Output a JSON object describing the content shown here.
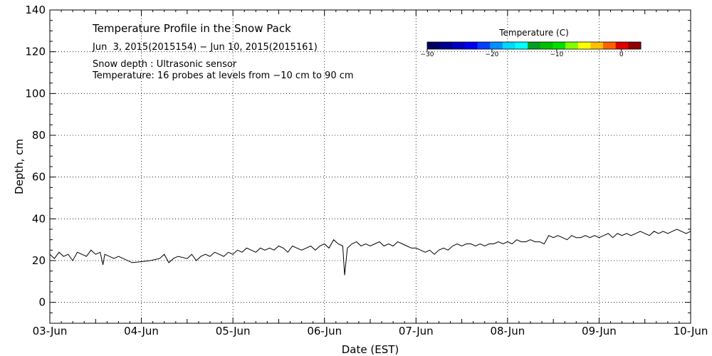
{
  "chart_data": {
    "type": "line",
    "title": "Temperature Profile in the Snow Pack",
    "subtitle": "Jun  3, 2015(2015154) − Jun 10, 2015(2015161)",
    "annotations": [
      "Snow depth : Ultrasonic sensor",
      "Temperature: 16 probes at levels from −10 cm to 90 cm"
    ],
    "xlabel": "Date (EST)",
    "ylabel": "Depth, cm",
    "xlim": [
      0,
      7
    ],
    "ylim": [
      -10,
      140
    ],
    "x_tick_labels": [
      "03-Jun",
      "04-Jun",
      "05-Jun",
      "06-Jun",
      "07-Jun",
      "08-Jun",
      "09-Jun",
      "10-Jun"
    ],
    "y_ticks": [
      0,
      20,
      40,
      60,
      80,
      100,
      120,
      140
    ],
    "grid": true,
    "colorbar": {
      "title": "Temperature (C)",
      "tick_labels": [
        "−30",
        "−20",
        "−10",
        "0"
      ],
      "tick_values": [
        -30,
        -20,
        -10,
        0
      ],
      "range": [
        -30,
        3
      ],
      "colors": [
        "#000060",
        "#000090",
        "#0000c0",
        "#0000f0",
        "#0040ff",
        "#0090ff",
        "#00d8ff",
        "#00ffff",
        "#00a020",
        "#00c000",
        "#00e000",
        "#80ff00",
        "#ffff00",
        "#ffc000",
        "#ff6000",
        "#e00000",
        "#900000"
      ]
    },
    "series": [
      {
        "name": "Snow depth",
        "points": [
          [
            0.0,
            23
          ],
          [
            0.05,
            21
          ],
          [
            0.1,
            24
          ],
          [
            0.15,
            22
          ],
          [
            0.2,
            23
          ],
          [
            0.25,
            20
          ],
          [
            0.3,
            24
          ],
          [
            0.35,
            23
          ],
          [
            0.4,
            22
          ],
          [
            0.45,
            25
          ],
          [
            0.5,
            23
          ],
          [
            0.55,
            24
          ],
          [
            0.58,
            18
          ],
          [
            0.6,
            23
          ],
          [
            0.65,
            22
          ],
          [
            0.7,
            21
          ],
          [
            0.75,
            22
          ],
          [
            0.8,
            21
          ],
          [
            0.9,
            19
          ],
          [
            1.0,
            19.5
          ],
          [
            1.1,
            20
          ],
          [
            1.15,
            20.5
          ],
          [
            1.2,
            21
          ],
          [
            1.25,
            23
          ],
          [
            1.3,
            19
          ],
          [
            1.35,
            21
          ],
          [
            1.4,
            22
          ],
          [
            1.5,
            21
          ],
          [
            1.55,
            23
          ],
          [
            1.6,
            20
          ],
          [
            1.65,
            22
          ],
          [
            1.7,
            23
          ],
          [
            1.75,
            22
          ],
          [
            1.8,
            24
          ],
          [
            1.85,
            23
          ],
          [
            1.9,
            22
          ],
          [
            1.95,
            24
          ],
          [
            2.0,
            23
          ],
          [
            2.05,
            25
          ],
          [
            2.1,
            24
          ],
          [
            2.15,
            26
          ],
          [
            2.2,
            25
          ],
          [
            2.25,
            24
          ],
          [
            2.3,
            26
          ],
          [
            2.35,
            25
          ],
          [
            2.4,
            26
          ],
          [
            2.45,
            25
          ],
          [
            2.5,
            27
          ],
          [
            2.55,
            26
          ],
          [
            2.6,
            24
          ],
          [
            2.65,
            27
          ],
          [
            2.7,
            26
          ],
          [
            2.75,
            25
          ],
          [
            2.8,
            26
          ],
          [
            2.85,
            27
          ],
          [
            2.9,
            25
          ],
          [
            2.95,
            27
          ],
          [
            3.0,
            28
          ],
          [
            3.05,
            26
          ],
          [
            3.1,
            30
          ],
          [
            3.15,
            28
          ],
          [
            3.2,
            27
          ],
          [
            3.22,
            13
          ],
          [
            3.25,
            26
          ],
          [
            3.3,
            28
          ],
          [
            3.35,
            29
          ],
          [
            3.4,
            27
          ],
          [
            3.45,
            28
          ],
          [
            3.5,
            27
          ],
          [
            3.55,
            28
          ],
          [
            3.6,
            29
          ],
          [
            3.65,
            27
          ],
          [
            3.7,
            28
          ],
          [
            3.75,
            27
          ],
          [
            3.8,
            29
          ],
          [
            3.85,
            28
          ],
          [
            3.9,
            27
          ],
          [
            3.95,
            26
          ],
          [
            4.0,
            26
          ],
          [
            4.05,
            25
          ],
          [
            4.1,
            24
          ],
          [
            4.15,
            25
          ],
          [
            4.2,
            23
          ],
          [
            4.25,
            25
          ],
          [
            4.3,
            26
          ],
          [
            4.35,
            25
          ],
          [
            4.4,
            27
          ],
          [
            4.45,
            28
          ],
          [
            4.5,
            27
          ],
          [
            4.55,
            28
          ],
          [
            4.6,
            28
          ],
          [
            4.65,
            27
          ],
          [
            4.7,
            28
          ],
          [
            4.75,
            27
          ],
          [
            4.8,
            28
          ],
          [
            4.85,
            28
          ],
          [
            4.9,
            29
          ],
          [
            4.95,
            28
          ],
          [
            5.0,
            29
          ],
          [
            5.05,
            28
          ],
          [
            5.1,
            30
          ],
          [
            5.15,
            29
          ],
          [
            5.2,
            29
          ],
          [
            5.25,
            30
          ],
          [
            5.3,
            29
          ],
          [
            5.35,
            29
          ],
          [
            5.4,
            28
          ],
          [
            5.45,
            32
          ],
          [
            5.5,
            31
          ],
          [
            5.55,
            32
          ],
          [
            5.6,
            31
          ],
          [
            5.65,
            30
          ],
          [
            5.7,
            32
          ],
          [
            5.75,
            31
          ],
          [
            5.8,
            31
          ],
          [
            5.85,
            32
          ],
          [
            5.9,
            31
          ],
          [
            5.95,
            32
          ],
          [
            6.0,
            31
          ],
          [
            6.05,
            32
          ],
          [
            6.1,
            33
          ],
          [
            6.15,
            31
          ],
          [
            6.2,
            33
          ],
          [
            6.25,
            32
          ],
          [
            6.3,
            33
          ],
          [
            6.35,
            32
          ],
          [
            6.4,
            33
          ],
          [
            6.45,
            34
          ],
          [
            6.5,
            33
          ],
          [
            6.55,
            32
          ],
          [
            6.6,
            34
          ],
          [
            6.65,
            33
          ],
          [
            6.7,
            34
          ],
          [
            6.75,
            33
          ],
          [
            6.8,
            34
          ],
          [
            6.85,
            35
          ],
          [
            6.9,
            34
          ],
          [
            6.95,
            33
          ],
          [
            7.0,
            34
          ]
        ]
      }
    ]
  }
}
